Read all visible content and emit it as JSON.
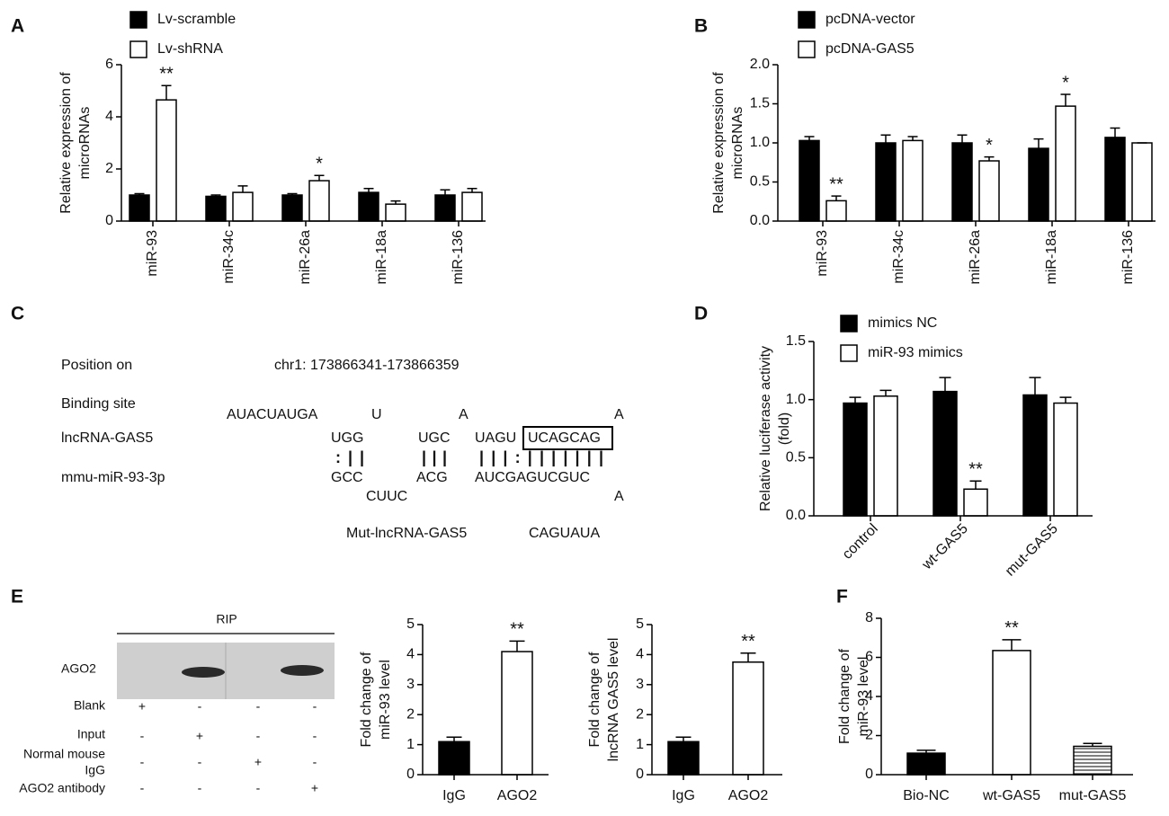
{
  "panel_labels": [
    "A",
    "B",
    "C",
    "D",
    "E",
    "F"
  ],
  "chart_data": [
    {
      "type": "bar",
      "ylabel": [
        "Relative expression of",
        "microRNAs"
      ],
      "categories": [
        "miR-93",
        "miR-34c",
        "miR-26a",
        "miR-18a",
        "miR-136"
      ],
      "ylim": [
        0,
        6
      ],
      "yticks": [
        0,
        2,
        4,
        6
      ],
      "series": [
        {
          "name": "Lv-scramble",
          "color": "#000000",
          "values": [
            1.0,
            0.95,
            1.0,
            1.1,
            1.0
          ],
          "errors": [
            0.05,
            0.05,
            0.05,
            0.15,
            0.2
          ],
          "significance": [
            null,
            null,
            null,
            null,
            null
          ]
        },
        {
          "name": "Lv-shRNA",
          "color": "#ffffff",
          "values": [
            4.65,
            1.1,
            1.55,
            0.65,
            1.1
          ],
          "errors": [
            0.55,
            0.25,
            0.2,
            0.12,
            0.15
          ],
          "significance": [
            "**",
            null,
            "*",
            null,
            null
          ]
        }
      ]
    },
    {
      "type": "bar",
      "ylabel": [
        "Relative expression of",
        "microRNAs"
      ],
      "categories": [
        "miR-93",
        "miR-34c",
        "miR-26a",
        "miR-18a",
        "miR-136"
      ],
      "ylim": [
        0,
        2
      ],
      "yticks": [
        {
          "value": 0,
          "label": "0.0"
        },
        0.5,
        {
          "value": 1,
          "label": "1.0"
        },
        1.5,
        {
          "value": 2,
          "label": "2.0"
        }
      ],
      "series": [
        {
          "name": "pcDNA-vector",
          "color": "#000000",
          "values": [
            1.03,
            1.0,
            1.0,
            0.93,
            1.07
          ],
          "errors": [
            0.05,
            0.1,
            0.1,
            0.12,
            0.12
          ],
          "significance": [
            null,
            null,
            null,
            null,
            null
          ]
        },
        {
          "name": "pcDNA-GAS5",
          "color": "#ffffff",
          "values": [
            0.26,
            1.03,
            0.77,
            1.47,
            1.0
          ],
          "errors": [
            0.06,
            0.05,
            0.05,
            0.15,
            0
          ],
          "significance": [
            "**",
            null,
            "*",
            "*",
            null
          ]
        }
      ]
    },
    {
      "type": "bar",
      "ylabel": [
        "Relative luciferase activity",
        "(fold)"
      ],
      "categories": [
        "control",
        "wt-GAS5",
        "mut-GAS5"
      ],
      "ylim": [
        0,
        1.5
      ],
      "yticks": [
        {
          "value": 0,
          "label": "0.0"
        },
        0.5,
        {
          "value": 1,
          "label": "1.0"
        },
        1.5
      ],
      "series": [
        {
          "name": "mimics NC",
          "color": "#000000",
          "values": [
            0.97,
            1.07,
            1.04
          ],
          "errors": [
            0.05,
            0.12,
            0.15
          ],
          "significance": [
            null,
            null,
            null
          ]
        },
        {
          "name": "miR-93 mimics",
          "color": "#ffffff",
          "values": [
            1.03,
            0.23,
            0.97
          ],
          "errors": [
            0.05,
            0.07,
            0.05
          ],
          "significance": [
            null,
            "**",
            null
          ]
        }
      ]
    },
    {
      "type": "bar",
      "ylabel": [
        "Fold change of",
        "miR-93 level"
      ],
      "categories": [
        "IgG",
        "AGO2"
      ],
      "ylim": [
        0,
        5
      ],
      "yticks": [
        0,
        1,
        2,
        3,
        4,
        5
      ],
      "series": [
        {
          "colors": [
            "#000000",
            "#ffffff"
          ],
          "values": [
            1.1,
            4.1
          ],
          "errors": [
            0.15,
            0.35
          ],
          "significance": [
            null,
            "**"
          ]
        }
      ]
    },
    {
      "type": "bar",
      "ylabel": [
        "Fold change of",
        "lncRNA GAS5 level"
      ],
      "categories": [
        "IgG",
        "AGO2"
      ],
      "ylim": [
        0,
        5
      ],
      "yticks": [
        0,
        1,
        2,
        3,
        4,
        5
      ],
      "series": [
        {
          "colors": [
            "#000000",
            "#ffffff"
          ],
          "values": [
            1.1,
            3.75
          ],
          "errors": [
            0.15,
            0.3
          ],
          "significance": [
            null,
            "**"
          ]
        }
      ]
    },
    {
      "type": "bar",
      "ylabel": [
        "Fold change of",
        "miR-93 level"
      ],
      "categories": [
        "Bio-NC",
        "wt-GAS5",
        "mut-GAS5"
      ],
      "ylim": [
        0,
        8
      ],
      "yticks": [
        0,
        2,
        4,
        6,
        8
      ],
      "series": [
        {
          "colors": [
            "#000000",
            "#ffffff",
            "#ffffff"
          ],
          "hatch": [
            false,
            false,
            true
          ],
          "values": [
            1.1,
            6.35,
            1.45
          ],
          "errors": [
            0.15,
            0.55,
            0.15
          ],
          "significance": [
            null,
            "**",
            null
          ]
        }
      ]
    }
  ],
  "sequence_panel": {
    "position_label": "Position on",
    "position": "chr1: 173866341-173866359",
    "binding_site_label": "Binding site",
    "lncrna_label": "lncRNA-GAS5",
    "mirna_label": "mmu-miR-93-3p",
    "lncrna_unpaired": [
      "AUACUAUGA",
      "U",
      "A",
      "A"
    ],
    "lncrna_paired": [
      "UGG",
      "UGC",
      "UAGU",
      "UCAGCAG"
    ],
    "pairing": [
      ":||",
      "|||",
      "|||:|||||||"
    ],
    "mirna_paired": [
      "GCC",
      "ACG",
      "AUCGAGUCGUC"
    ],
    "mirna_unpaired": [
      "CUUC",
      "A"
    ],
    "mutant_label": "Mut-lncRNA-GAS5",
    "mutant_sequence": "CAGUAUA"
  },
  "blot": {
    "title": "RIP",
    "band_label": "AGO2",
    "rows": [
      {
        "label": [
          "Blank"
        ],
        "marks": [
          "+",
          "-",
          "-",
          "-"
        ]
      },
      {
        "label": [
          "Input"
        ],
        "marks": [
          "-",
          "+",
          "-",
          "-"
        ]
      },
      {
        "label": [
          "Normal mouse",
          "IgG"
        ],
        "marks": [
          "-",
          "-",
          "+",
          "-"
        ]
      },
      {
        "label": [
          "AGO2 antibody"
        ],
        "marks": [
          "-",
          "-",
          "-",
          "+"
        ]
      }
    ]
  }
}
